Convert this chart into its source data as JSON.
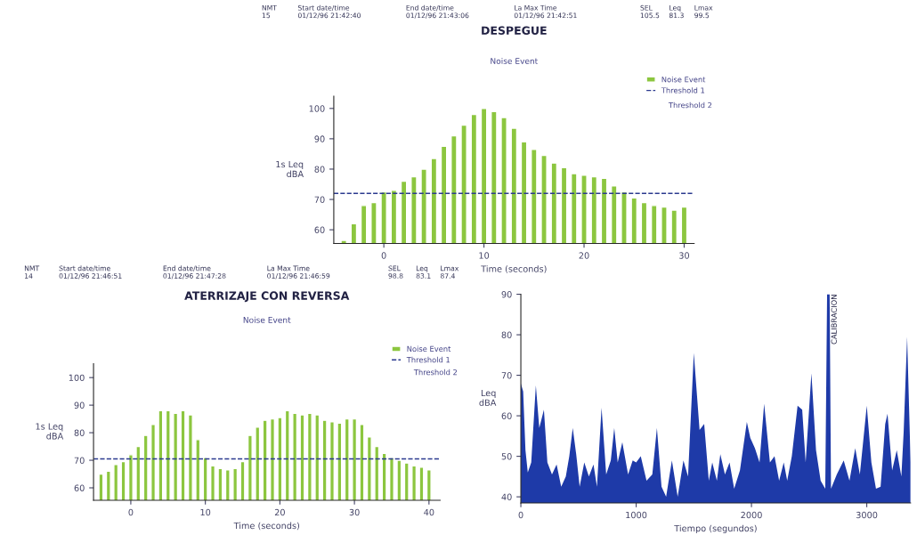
{
  "chart_data": [
    {
      "type": "bar",
      "title": "DESPEGUE",
      "subtitle": "Noise Event",
      "xlabel": "Time (seconds)",
      "ylabel": "1s Leq\ndBA",
      "annotations": [
        "NMT\n15",
        "Start date/time\n01/12/96 21:42:40",
        "End date/time\n01/12/96 21:43:06",
        "La Max Time\n01/12/96 21:42:51",
        "SEL\n105.5",
        "Leq\n81.3",
        "Lmax\n99.5",
        "Threshold 2"
      ],
      "x": [
        -4,
        -3,
        -2,
        -1,
        0,
        1,
        2,
        3,
        4,
        5,
        6,
        7,
        8,
        9,
        10,
        11,
        12,
        13,
        14,
        15,
        16,
        17,
        18,
        19,
        20,
        21,
        22,
        23,
        24,
        25,
        26,
        27,
        28,
        29,
        30
      ],
      "series": [
        {
          "name": "Noise Event",
          "color": "#8cc63f",
          "values": [
            56.5,
            62,
            68,
            69,
            72.5,
            73,
            76,
            77.5,
            80,
            83.5,
            87.5,
            91,
            94.5,
            98,
            100,
            99,
            97,
            93.5,
            89,
            86.5,
            84.5,
            82,
            80.5,
            78.5,
            78,
            77.5,
            77,
            74.5,
            72.5,
            70.5,
            69,
            68,
            67.5,
            66.5,
            67.5
          ]
        }
      ],
      "ref_lines": [
        {
          "axis": "y",
          "value": 72,
          "label": "Threshold 1",
          "color": "#2b3a8f",
          "line_style": "dashed"
        }
      ],
      "xlim": [
        -5,
        31
      ],
      "xticks": [
        0,
        10,
        20,
        30
      ],
      "ylim": [
        55.5,
        104
      ],
      "yticks": [
        60,
        70,
        80,
        90,
        100
      ],
      "legend": "top right"
    },
    {
      "type": "bar",
      "title": "ATERRIZAJE CON REVERSA",
      "subtitle": "Noise Event",
      "xlabel": "Time (seconds)",
      "ylabel": "1s Leq\ndBA",
      "annotations": [
        "NMT\n14",
        "Start date/time\n01/12/96 21:46:51",
        "End date/time\n01/12/96 21:47:28",
        "La Max Time\n01/12/96 21:46:59",
        "SEL\n98.8",
        "Leq\n83.1",
        "Lmax\n87.4",
        "Threshold 2"
      ],
      "x": [
        -4,
        -3,
        -2,
        -1,
        0,
        1,
        2,
        3,
        4,
        5,
        6,
        7,
        8,
        9,
        10,
        11,
        12,
        13,
        14,
        15,
        16,
        17,
        18,
        19,
        20,
        21,
        22,
        23,
        24,
        25,
        26,
        27,
        28,
        29,
        30,
        31,
        32,
        33,
        34,
        35,
        36,
        37,
        38,
        39,
        40
      ],
      "series": [
        {
          "name": "Noise Event",
          "color": "#8cc63f",
          "values": [
            65,
            66,
            68.5,
            69.5,
            72,
            75,
            79,
            83,
            88,
            88,
            87,
            88,
            86.5,
            77.5,
            71,
            68,
            67,
            66.5,
            67,
            69.5,
            79,
            82,
            84.5,
            85,
            85.5,
            88,
            87,
            86.5,
            87,
            86.5,
            84.5,
            84,
            83.5,
            85,
            85,
            83,
            78.5,
            75,
            72.5,
            71,
            70,
            69,
            68,
            67.5,
            66.5
          ]
        }
      ],
      "ref_lines": [
        {
          "axis": "y",
          "value": 70.5,
          "label": "Threshold 1",
          "color": "#2b3a8f",
          "line_style": "dashed"
        }
      ],
      "xlim": [
        -5,
        41.5
      ],
      "xticks": [
        0,
        10,
        20,
        30,
        40
      ],
      "ylim": [
        55.5,
        105
      ],
      "yticks": [
        60,
        70,
        80,
        90,
        100
      ],
      "legend": "top right"
    },
    {
      "type": "area",
      "xlabel": "Tiempo (segundos)",
      "ylabel": "Leq\ndBA",
      "annotations": [
        {
          "text": "CALIBRACION",
          "x": 2690,
          "y": 90
        }
      ],
      "series": [
        {
          "color": "#1e3aa8",
          "x": [
            0,
            20,
            40,
            60,
            90,
            130,
            160,
            200,
            230,
            270,
            310,
            350,
            390,
            420,
            450,
            480,
            510,
            550,
            590,
            630,
            660,
            700,
            740,
            780,
            810,
            840,
            880,
            930,
            970,
            1000,
            1040,
            1090,
            1140,
            1180,
            1220,
            1260,
            1310,
            1360,
            1410,
            1450,
            1500,
            1550,
            1590,
            1630,
            1660,
            1700,
            1730,
            1770,
            1810,
            1850,
            1900,
            1960,
            1990,
            2030,
            2070,
            2110,
            2160,
            2200,
            2240,
            2280,
            2310,
            2350,
            2400,
            2440,
            2470,
            2520,
            2560,
            2600,
            2640,
            2656,
            2678,
            2690,
            2740,
            2800,
            2850,
            2900,
            2940,
            3000,
            3040,
            3080,
            3120,
            3160,
            3180,
            3220,
            3260,
            3300,
            3320,
            3350,
            3380
          ],
          "values": [
            68,
            66,
            51.5,
            46,
            48.5,
            67.5,
            57,
            61.5,
            48.5,
            45.5,
            48,
            42.5,
            45,
            50,
            57,
            50.5,
            42.5,
            48.5,
            45,
            48,
            42.5,
            62,
            45.5,
            49,
            57,
            48.5,
            53.5,
            45.5,
            49,
            48.5,
            50,
            44,
            45.5,
            57,
            42.5,
            40,
            49,
            40,
            49,
            45,
            75.5,
            56.5,
            58,
            44,
            48.5,
            44,
            50.5,
            45.5,
            48.5,
            42,
            46.5,
            58.5,
            54.5,
            52,
            48.5,
            63,
            48.5,
            50,
            44,
            48.5,
            44,
            50,
            62.5,
            61.5,
            48.5,
            70.5,
            51.5,
            44,
            42,
            90,
            90,
            42,
            45.5,
            49,
            44,
            52,
            45.5,
            62.5,
            48.5,
            42,
            42.5,
            58,
            60.5,
            46.5,
            51.5,
            45,
            56,
            79.5,
            48.5
          ]
        }
      ],
      "xlim": [
        0,
        3380
      ],
      "xticks": [
        0,
        1000,
        2000,
        3000
      ],
      "ylim": [
        38.5,
        90
      ],
      "yticks": [
        40,
        50,
        60,
        70,
        80,
        90
      ]
    }
  ]
}
